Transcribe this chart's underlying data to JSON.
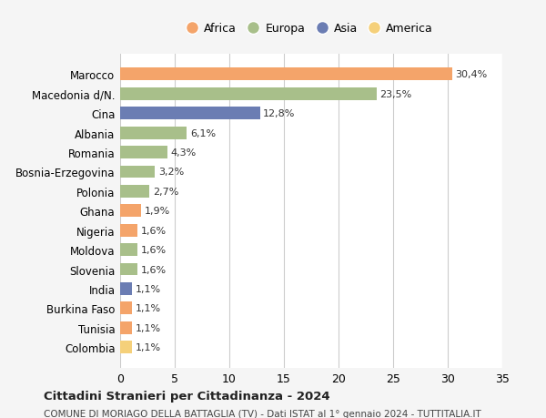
{
  "categories": [
    "Marocco",
    "Macedonia d/N.",
    "Cina",
    "Albania",
    "Romania",
    "Bosnia-Erzegovina",
    "Polonia",
    "Ghana",
    "Nigeria",
    "Moldova",
    "Slovenia",
    "India",
    "Burkina Faso",
    "Tunisia",
    "Colombia"
  ],
  "values": [
    30.4,
    23.5,
    12.8,
    6.1,
    4.3,
    3.2,
    2.7,
    1.9,
    1.6,
    1.6,
    1.6,
    1.1,
    1.1,
    1.1,
    1.1
  ],
  "labels": [
    "30,4%",
    "23,5%",
    "12,8%",
    "6,1%",
    "4,3%",
    "3,2%",
    "2,7%",
    "1,9%",
    "1,6%",
    "1,6%",
    "1,6%",
    "1,1%",
    "1,1%",
    "1,1%",
    "1,1%"
  ],
  "continents": [
    "Africa",
    "Europa",
    "Asia",
    "Europa",
    "Europa",
    "Europa",
    "Europa",
    "Africa",
    "Africa",
    "Europa",
    "Europa",
    "Asia",
    "Africa",
    "Africa",
    "America"
  ],
  "continent_colors": {
    "Africa": "#F4A46A",
    "Europa": "#A8BF8A",
    "Asia": "#6B7DB3",
    "America": "#F5D07A"
  },
  "legend_order": [
    "Africa",
    "Europa",
    "Asia",
    "America"
  ],
  "title1": "Cittadini Stranieri per Cittadinanza - 2024",
  "title2": "COMUNE DI MORIAGO DELLA BATTAGLIA (TV) - Dati ISTAT al 1° gennaio 2024 - TUTTITALIA.IT",
  "xlim": [
    0,
    35
  ],
  "xticks": [
    0,
    5,
    10,
    15,
    20,
    25,
    30,
    35
  ],
  "background_color": "#f5f5f5",
  "plot_bg_color": "#ffffff",
  "grid_color": "#cccccc"
}
